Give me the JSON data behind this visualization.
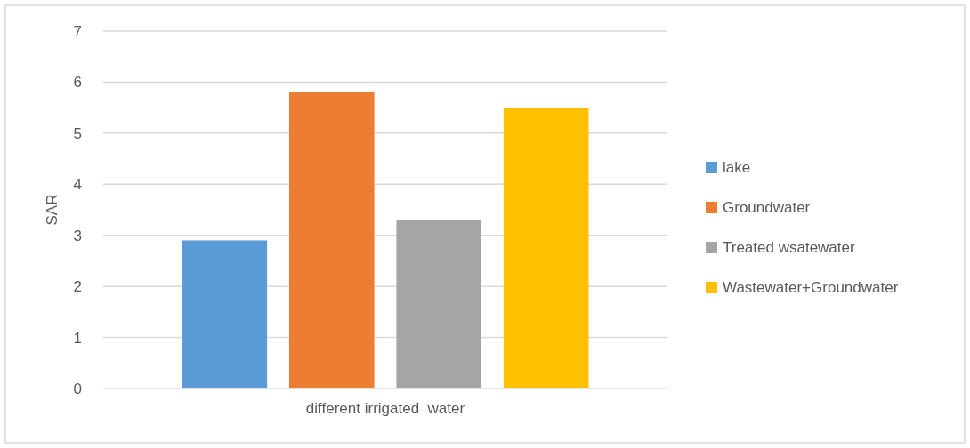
{
  "chart_data": {
    "type": "bar",
    "ylabel": "SAR",
    "categories": [
      "different irrigated  water"
    ],
    "series": [
      {
        "name": "lake",
        "color": "#5b9bd5",
        "values": [
          2.9
        ]
      },
      {
        "name": "Groundwater",
        "color": "#ed7d31",
        "values": [
          5.8
        ]
      },
      {
        "name": "Treated wsatewater",
        "color": "#a5a5a5",
        "values": [
          3.3
        ]
      },
      {
        "name": "Wastewater+Groundwater",
        "color": "#ffc000",
        "values": [
          5.5
        ]
      }
    ],
    "ylim": [
      0,
      7
    ],
    "yticks": [
      0,
      1,
      2,
      3,
      4,
      5,
      6,
      7
    ],
    "grid": "y",
    "legend": "right"
  }
}
